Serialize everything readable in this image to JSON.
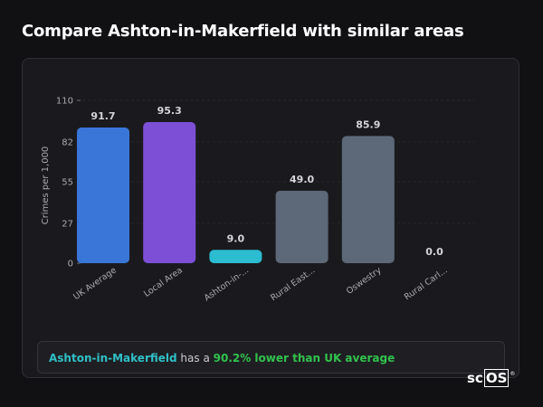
{
  "header": {
    "title": "Compare Ashton-in-Makerfield with similar areas"
  },
  "summary": {
    "area": "Ashton-in-Makerfield",
    "middle": " has a ",
    "highlight": "90.2% lower than UK average"
  },
  "brand": {
    "prefix": "sc",
    "boxed": "OS",
    "reg": "®"
  },
  "chart_data": {
    "type": "bar",
    "ylabel": "Crimes per 1,000",
    "ylim": [
      0,
      110
    ],
    "yticks": [
      0,
      27,
      55,
      82,
      110
    ],
    "grid": true,
    "categories": [
      "UK Average",
      "Local Area",
      "Ashton-in-...",
      "Rural East...",
      "Oswestry",
      "Rural Carl..."
    ],
    "values": [
      91.7,
      95.3,
      9.0,
      49.0,
      85.9,
      0.0
    ],
    "value_labels": [
      "91.7",
      "95.3",
      "9.0",
      "49.0",
      "85.9",
      "0.0"
    ],
    "colors": [
      "#3a76d8",
      "#7c4fd6",
      "#2bbcd0",
      "#5d6878",
      "#5d6878",
      "#5d6878"
    ]
  }
}
